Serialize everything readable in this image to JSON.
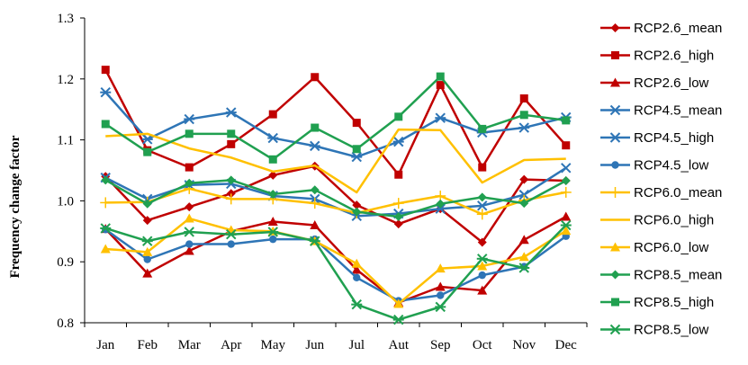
{
  "chart_data": {
    "type": "line",
    "title": "",
    "xlabel": "",
    "ylabel": "Frequency change factor",
    "ylim": [
      0.8,
      1.3
    ],
    "yticks": [
      "0.8",
      "0.9",
      "1.0",
      "1.1",
      "1.2",
      "1.3"
    ],
    "categories": [
      "Jan",
      "Feb",
      "Mar",
      "Apr",
      "May",
      "Jun",
      "Jul",
      "Aut",
      "Sep",
      "Oct",
      "Nov",
      "Dec"
    ],
    "grid": false,
    "legend_position": "right",
    "series": [
      {
        "name": "RCP2.6_mean",
        "color": "#C00000",
        "marker": "diamond",
        "values": [
          1.04,
          0.968,
          0.99,
          1.012,
          1.042,
          1.057,
          0.993,
          0.962,
          0.987,
          0.932,
          1.035,
          1.033
        ]
      },
      {
        "name": "RCP2.6_high",
        "color": "#C00000",
        "marker": "square",
        "values": [
          1.215,
          1.083,
          1.055,
          1.093,
          1.142,
          1.203,
          1.128,
          1.043,
          1.19,
          1.055,
          1.168,
          1.091
        ]
      },
      {
        "name": "RCP2.6_low",
        "color": "#C00000",
        "marker": "triangle",
        "values": [
          0.954,
          0.881,
          0.918,
          0.95,
          0.966,
          0.96,
          0.887,
          0.833,
          0.859,
          0.853,
          0.936,
          0.974
        ]
      },
      {
        "name": "RCP4.5_mean",
        "color": "#2E75B6",
        "marker": "x",
        "values": [
          1.038,
          1.003,
          1.026,
          1.028,
          1.008,
          1.003,
          0.975,
          0.979,
          0.987,
          0.992,
          1.01,
          1.054
        ]
      },
      {
        "name": "RCP4.5_high",
        "color": "#2E75B6",
        "marker": "star",
        "values": [
          1.178,
          1.101,
          1.134,
          1.145,
          1.103,
          1.09,
          1.072,
          1.097,
          1.136,
          1.112,
          1.12,
          1.137
        ]
      },
      {
        "name": "RCP4.5_low",
        "color": "#2E75B6",
        "marker": "circle",
        "values": [
          0.953,
          0.904,
          0.929,
          0.929,
          0.937,
          0.937,
          0.874,
          0.836,
          0.845,
          0.878,
          0.892,
          0.942
        ]
      },
      {
        "name": "RCP6.0_mean",
        "color": "#FFC000",
        "marker": "plus",
        "values": [
          0.997,
          0.998,
          1.02,
          1.003,
          1.003,
          0.996,
          0.98,
          0.996,
          1.008,
          0.978,
          1.001,
          1.014
        ]
      },
      {
        "name": "RCP6.0_high",
        "color": "#FFC000",
        "marker": "none",
        "values": [
          1.106,
          1.11,
          1.086,
          1.071,
          1.048,
          1.058,
          1.014,
          1.117,
          1.116,
          1.03,
          1.067,
          1.069
        ]
      },
      {
        "name": "RCP6.0_low",
        "color": "#FFC000",
        "marker": "triangle",
        "values": [
          0.921,
          0.916,
          0.971,
          0.952,
          0.95,
          0.934,
          0.897,
          0.831,
          0.889,
          0.893,
          0.908,
          0.951
        ]
      },
      {
        "name": "RCP8.5_mean",
        "color": "#20A050",
        "marker": "diamond",
        "values": [
          1.034,
          0.995,
          1.029,
          1.034,
          1.011,
          1.018,
          0.982,
          0.974,
          0.995,
          1.006,
          0.996,
          1.033
        ]
      },
      {
        "name": "RCP8.5_high",
        "color": "#20A050",
        "marker": "square",
        "values": [
          1.126,
          1.08,
          1.11,
          1.11,
          1.068,
          1.12,
          1.085,
          1.138,
          1.204,
          1.118,
          1.141,
          1.132
        ]
      },
      {
        "name": "RCP8.5_low",
        "color": "#20A050",
        "marker": "star",
        "values": [
          0.955,
          0.934,
          0.949,
          0.945,
          0.949,
          0.934,
          0.83,
          0.805,
          0.826,
          0.905,
          0.89,
          0.96
        ]
      }
    ]
  }
}
